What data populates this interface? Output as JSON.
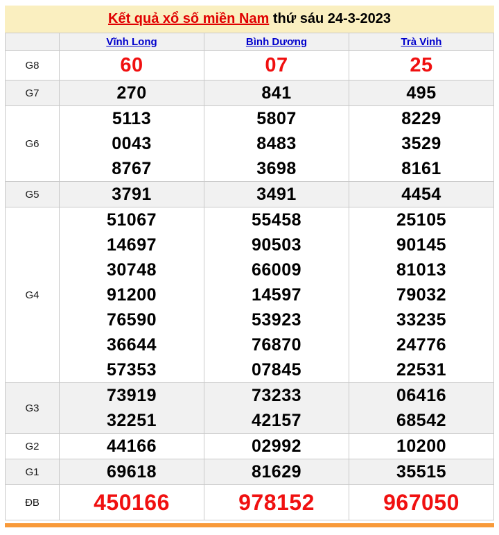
{
  "header": {
    "title_link": "Kết quả xổ số miền Nam",
    "date_text": " thứ sáu 24-3-2023"
  },
  "columns": [
    "Vĩnh Long",
    "Bình Dương",
    "Trà Vinh"
  ],
  "rows": [
    {
      "label": "G8",
      "style": "g8",
      "values": [
        [
          "60"
        ],
        [
          "07"
        ],
        [
          "25"
        ]
      ]
    },
    {
      "label": "G7",
      "style": "normal",
      "values": [
        [
          "270"
        ],
        [
          "841"
        ],
        [
          "495"
        ]
      ]
    },
    {
      "label": "G6",
      "style": "normal",
      "values": [
        [
          "5113",
          "0043",
          "8767"
        ],
        [
          "5807",
          "8483",
          "3698"
        ],
        [
          "8229",
          "3529",
          "8161"
        ]
      ]
    },
    {
      "label": "G5",
      "style": "normal",
      "values": [
        [
          "3791"
        ],
        [
          "3491"
        ],
        [
          "4454"
        ]
      ]
    },
    {
      "label": "G4",
      "style": "normal",
      "values": [
        [
          "51067",
          "14697",
          "30748",
          "91200",
          "76590",
          "36644",
          "57353"
        ],
        [
          "55458",
          "90503",
          "66009",
          "14597",
          "53923",
          "76870",
          "07845"
        ],
        [
          "25105",
          "90145",
          "81013",
          "79032",
          "33235",
          "24776",
          "22531"
        ]
      ]
    },
    {
      "label": "G3",
      "style": "normal",
      "values": [
        [
          "73919",
          "32251"
        ],
        [
          "73233",
          "42157"
        ],
        [
          "06416",
          "68542"
        ]
      ]
    },
    {
      "label": "G2",
      "style": "normal",
      "values": [
        [
          "44166"
        ],
        [
          "02992"
        ],
        [
          "10200"
        ]
      ]
    },
    {
      "label": "G1",
      "style": "normal",
      "values": [
        [
          "69618"
        ],
        [
          "81629"
        ],
        [
          "35515"
        ]
      ]
    },
    {
      "label": "ĐB",
      "style": "db",
      "values": [
        [
          "450166"
        ],
        [
          "978152"
        ],
        [
          "967050"
        ]
      ]
    }
  ],
  "colors": {
    "title_red": "#e00000",
    "link_blue": "#0000cc",
    "number_red": "#f01010",
    "stripe_gray": "#f1f1f1",
    "header_yellow": "#faefc0",
    "orange_bar": "#f89a3a",
    "border_gray": "#c9c9c9"
  }
}
